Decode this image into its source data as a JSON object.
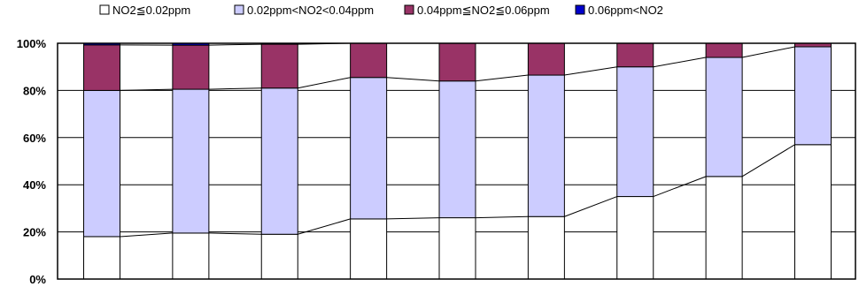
{
  "chart_data": {
    "type": "bar",
    "stacked": true,
    "percent_stacked": true,
    "categories": [
      "",
      "",
      "",
      "",
      "",
      "",
      "",
      "",
      ""
    ],
    "series": [
      {
        "name": "NO2≦0.02ppm",
        "color": "#ffffff",
        "values": [
          18,
          19.5,
          19,
          25.5,
          26,
          26.5,
          35,
          43.5,
          57
        ]
      },
      {
        "name": "0.02ppm<NO2<0.04ppm",
        "color": "#ccccff",
        "values": [
          62,
          61,
          62,
          60,
          58,
          60,
          55,
          50.5,
          41.5
        ]
      },
      {
        "name": "0.04ppm≦NO2≦0.06ppm",
        "color": "#993366",
        "values": [
          19.3,
          18.7,
          18.6,
          14.5,
          16,
          13.5,
          10,
          6,
          1.5
        ]
      },
      {
        "name": "0.06ppm<NO2",
        "color": "#0000cc",
        "values": [
          0.7,
          0.8,
          0.4,
          0,
          0,
          0,
          0,
          0,
          0
        ]
      }
    ],
    "ylim": [
      0,
      100
    ],
    "y_ticks": [
      "0%",
      "20%",
      "40%",
      "60%",
      "80%",
      "100%"
    ],
    "grid": true,
    "legend_position": "top",
    "series_lines": true
  }
}
